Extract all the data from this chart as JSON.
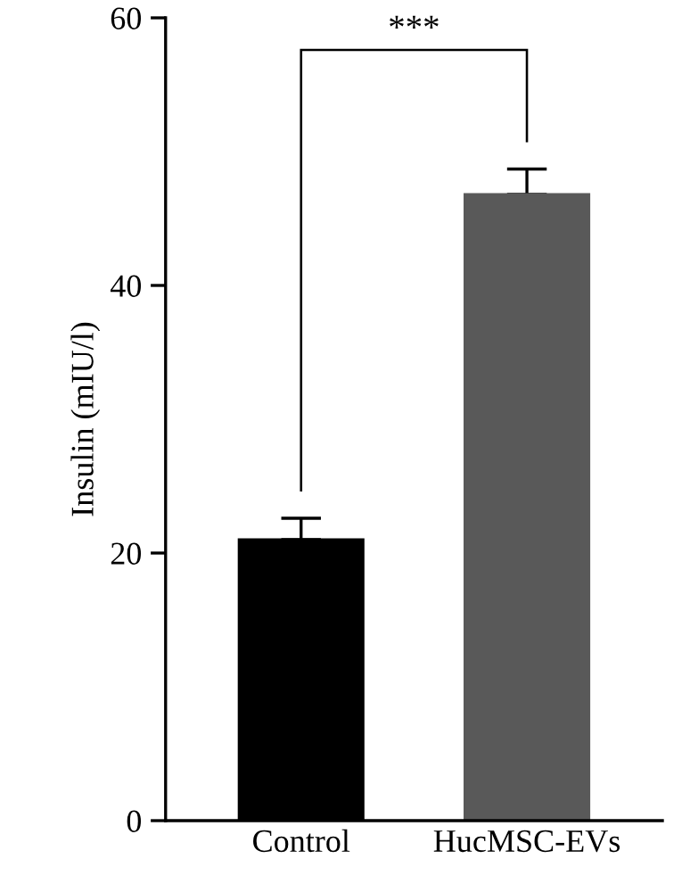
{
  "chart_data": {
    "type": "bar",
    "ylabel": "Insulin (mIU/l)",
    "categories": [
      "Control",
      "HucMSC-EVs"
    ],
    "values": [
      21.0,
      46.8
    ],
    "colors": [
      "#000000",
      "#595959"
    ],
    "errors": [
      [
        21.0,
        22.6
      ],
      [
        46.8,
        48.7
      ]
    ],
    "ylim": [
      0,
      60
    ],
    "yticks": [
      0,
      20,
      40,
      60
    ],
    "grid": false,
    "legend": false,
    "annotations": [
      "***"
    ]
  }
}
